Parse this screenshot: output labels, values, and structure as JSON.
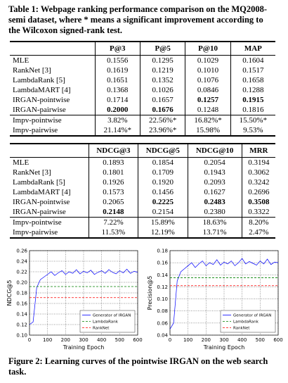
{
  "table_caption": {
    "label": "Table 1:",
    "text": "Webpage ranking performance comparison on the MQ2008-semi dataset, where * means a significant improvement according to the Wilcoxon signed-rank test."
  },
  "table1": {
    "header": [
      "P@3",
      "P@5",
      "P@10",
      "MAP"
    ],
    "rows": [
      {
        "cells": [
          "MLE",
          "0.1556",
          "0.1295",
          "0.1029",
          "0.1604"
        ],
        "bold": []
      },
      {
        "cells": [
          "RankNet [3]",
          "0.1619",
          "0.1219",
          "0.1010",
          "0.1517"
        ],
        "bold": []
      },
      {
        "cells": [
          "LambdaRank [5]",
          "0.1651",
          "0.1352",
          "0.1076",
          "0.1658"
        ],
        "bold": []
      },
      {
        "cells": [
          "LambdaMART [4]",
          "0.1368",
          "0.1026",
          "0.0846",
          "0.1288"
        ],
        "bold": []
      },
      {
        "cells": [
          "IRGAN-pointwise",
          "0.1714",
          "0.1657",
          "0.1257",
          "0.1915"
        ],
        "bold": [
          3,
          4
        ]
      },
      {
        "cells": [
          "IRGAN-pairwise",
          "0.2000",
          "0.1676",
          "0.1248",
          "0.1816"
        ],
        "bold": [
          1,
          2
        ]
      }
    ],
    "impv": [
      {
        "cells": [
          "Impv-pointwise",
          "3.82%",
          "22.56%*",
          "16.82%*",
          "15.50%*"
        ]
      },
      {
        "cells": [
          "Impv-pairwise",
          "21.14%*",
          "23.96%*",
          "15.98%",
          "9.53%"
        ]
      }
    ]
  },
  "table2": {
    "header": [
      "NDCG@3",
      "NDCG@5",
      "NDCG@10",
      "MRR"
    ],
    "rows": [
      {
        "cells": [
          "MLE",
          "0.1893",
          "0.1854",
          "0.2054",
          "0.3194"
        ],
        "bold": []
      },
      {
        "cells": [
          "RankNet [3]",
          "0.1801",
          "0.1709",
          "0.1943",
          "0.3062"
        ],
        "bold": []
      },
      {
        "cells": [
          "LambdaRank [5]",
          "0.1926",
          "0.1920",
          "0.2093",
          "0.3242"
        ],
        "bold": []
      },
      {
        "cells": [
          "LambdaMART [4]",
          "0.1573",
          "0.1456",
          "0.1627",
          "0.2696"
        ],
        "bold": []
      },
      {
        "cells": [
          "IRGAN-pointwise",
          "0.2065",
          "0.2225",
          "0.2483",
          "0.3508"
        ],
        "bold": [
          2,
          3,
          4
        ]
      },
      {
        "cells": [
          "IRGAN-pairwise",
          "0.2148",
          "0.2154",
          "0.2380",
          "0.3322"
        ],
        "bold": [
          1
        ]
      }
    ],
    "impv": [
      {
        "cells": [
          "Impv-pointwise",
          "7.22%",
          "15.89%",
          "18.63%",
          "8.20%"
        ]
      },
      {
        "cells": [
          "Impv-pairwise",
          "11.53%",
          "12.19%",
          "13.71%",
          "2.47%"
        ]
      }
    ]
  },
  "chart_data": [
    {
      "type": "line",
      "x_label": "Training Epoch",
      "y_label": "NDCG@5",
      "xlim": [
        0,
        600
      ],
      "xticks": [
        0,
        100,
        200,
        300,
        400,
        500,
        600
      ],
      "ylim": [
        0.1,
        0.26
      ],
      "yticks": [
        {
          "value": 0.1,
          "label": "0.10"
        },
        0.12,
        0.14,
        0.16,
        0.18,
        {
          "value": 0.2,
          "label": "0.20"
        },
        0.22,
        0.24,
        0.26
      ],
      "grid": true,
      "legend": "lower right",
      "series": [
        {
          "name": "Generator of IRGAN",
          "color": "#0000ff",
          "dashed": false,
          "x": [
            0,
            20,
            40,
            60,
            80,
            100,
            120,
            140,
            160,
            180,
            200,
            220,
            240,
            260,
            280,
            300,
            320,
            340,
            360,
            380,
            400,
            420,
            440,
            460,
            480,
            500,
            520,
            540,
            560,
            580,
            600
          ],
          "values": [
            0.12,
            0.125,
            0.19,
            0.205,
            0.21,
            0.215,
            0.22,
            0.213,
            0.218,
            0.222,
            0.215,
            0.22,
            0.217,
            0.224,
            0.216,
            0.221,
            0.218,
            0.223,
            0.215,
            0.219,
            0.222,
            0.217,
            0.224,
            0.219,
            0.216,
            0.222,
            0.218,
            0.225,
            0.217,
            0.221,
            0.219
          ]
        },
        {
          "name": "LambdaRank",
          "color": "#008000",
          "dashed": true,
          "x": [
            0,
            600
          ],
          "values": [
            0.192,
            0.192
          ]
        },
        {
          "name": "RankNet",
          "color": "#ff0000",
          "dashed": true,
          "x": [
            0,
            600
          ],
          "values": [
            0.171,
            0.171
          ]
        }
      ]
    },
    {
      "type": "line",
      "x_label": "Training Epoch",
      "y_label": "Precision@5",
      "xlim": [
        0,
        600
      ],
      "xticks": [
        0,
        100,
        200,
        300,
        400,
        500,
        600
      ],
      "ylim": [
        0.04,
        0.18
      ],
      "yticks": [
        0.04,
        0.06,
        0.08,
        {
          "value": 0.1,
          "label": "0.10"
        },
        0.12,
        0.14,
        0.16,
        0.18
      ],
      "grid": true,
      "legend": "lower right",
      "series": [
        {
          "name": "Generator of IRGAN",
          "color": "#0000ff",
          "dashed": false,
          "x": [
            0,
            20,
            40,
            60,
            80,
            100,
            120,
            140,
            160,
            180,
            200,
            220,
            240,
            260,
            280,
            300,
            320,
            340,
            360,
            380,
            400,
            420,
            440,
            460,
            480,
            500,
            520,
            540,
            560,
            580,
            600
          ],
          "values": [
            0.05,
            0.06,
            0.13,
            0.145,
            0.15,
            0.155,
            0.16,
            0.152,
            0.158,
            0.163,
            0.155,
            0.16,
            0.157,
            0.165,
            0.156,
            0.161,
            0.158,
            0.163,
            0.155,
            0.16,
            0.167,
            0.158,
            0.162,
            0.159,
            0.156,
            0.163,
            0.158,
            0.166,
            0.157,
            0.161,
            0.16
          ]
        },
        {
          "name": "LambdaRank",
          "color": "#008000",
          "dashed": true,
          "x": [
            0,
            600
          ],
          "values": [
            0.135,
            0.135
          ]
        },
        {
          "name": "RankNet",
          "color": "#ff0000",
          "dashed": true,
          "x": [
            0,
            600
          ],
          "values": [
            0.122,
            0.122
          ]
        }
      ]
    }
  ],
  "figure_caption": {
    "label": "Figure 2:",
    "text": "Learning curves of the pointwise IRGAN on the web search task."
  }
}
